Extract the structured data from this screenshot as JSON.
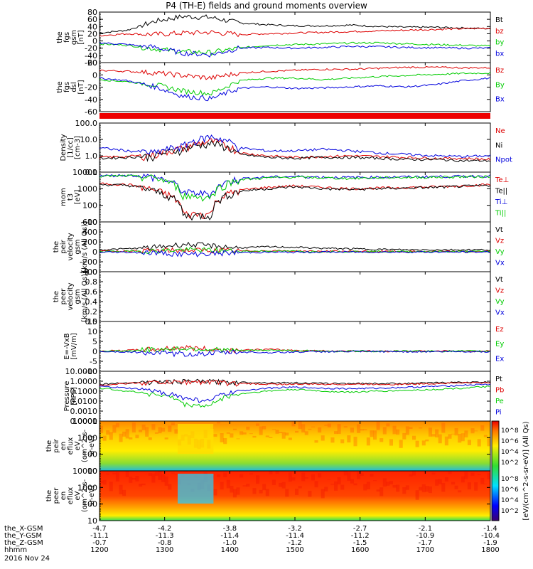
{
  "title": "P4 (TH-E) fields and ground moments overview",
  "date_label": "2016 Nov 24",
  "chart_data": [
    {
      "type": "line",
      "panel": "fgs",
      "ylabel": [
        "the",
        "fgs",
        "gsm",
        "[nT]"
      ],
      "ylim": [
        -60,
        80
      ],
      "yticks": [
        "80",
        "60",
        "40",
        "20",
        "0",
        "-20",
        "-40",
        "-60"
      ],
      "series": [
        {
          "name": "Bt",
          "color": "#000000",
          "values": [
            22,
            30,
            55,
            68,
            65,
            50,
            45,
            42,
            42,
            44,
            40,
            38,
            38,
            36,
            34
          ]
        },
        {
          "name": "bz",
          "color": "#dd0000",
          "values": [
            15,
            20,
            18,
            22,
            24,
            18,
            20,
            22,
            24,
            26,
            28,
            30,
            32,
            34,
            35
          ]
        },
        {
          "name": "by",
          "color": "#00cc00",
          "values": [
            -8,
            -12,
            -22,
            -30,
            -32,
            -20,
            -12,
            -10,
            -8,
            -6,
            -5,
            -8,
            -10,
            -12,
            -14
          ]
        },
        {
          "name": "bx",
          "color": "#0000dd",
          "values": [
            -5,
            -10,
            -18,
            -34,
            -38,
            -20,
            -18,
            -20,
            -18,
            -15,
            -16,
            -18,
            -19,
            -20,
            -20
          ]
        }
      ]
    },
    {
      "type": "line",
      "panel": "fgs_dsl",
      "ylabel": [
        "the",
        "fgs",
        "dsl",
        "[nT]"
      ],
      "ylim": [
        -70,
        25
      ],
      "yticks": [
        "20",
        "0",
        "-20",
        "-40",
        "-60"
      ],
      "series": [
        {
          "name": "Bz",
          "color": "#dd0000",
          "values": [
            10,
            8,
            5,
            0,
            -5,
            5,
            8,
            10,
            12,
            12,
            14,
            16,
            16,
            15,
            15
          ]
        },
        {
          "name": "By",
          "color": "#00cc00",
          "values": [
            -8,
            -12,
            -18,
            -30,
            -35,
            -10,
            -5,
            -5,
            -8,
            -5,
            -2,
            0,
            2,
            4,
            5
          ]
        },
        {
          "name": "Bx",
          "color": "#0000dd",
          "values": [
            -5,
            -10,
            -22,
            -40,
            -45,
            -25,
            -22,
            -25,
            -24,
            -22,
            -20,
            -22,
            -18,
            -10,
            -5
          ]
        }
      ]
    },
    {
      "type": "line",
      "panel": "density",
      "ylabel": [
        "Density",
        "[1/cc]",
        "[cm-3]"
      ],
      "ylim": [
        0.1,
        100
      ],
      "scale": "log",
      "yticks": [
        "100.0",
        "10.0",
        "1.0",
        "0.1"
      ],
      "series": [
        {
          "name": "Ne",
          "color": "#dd0000",
          "values": [
            0.8,
            0.9,
            1.2,
            3,
            8,
            1.5,
            1.0,
            0.8,
            0.9,
            1.0,
            0.9,
            0.8,
            0.7,
            0.7,
            0.6
          ]
        },
        {
          "name": "Ni",
          "color": "#000000",
          "values": [
            0.7,
            0.8,
            1.0,
            2.5,
            6,
            1.2,
            0.8,
            0.7,
            0.8,
            0.8,
            0.7,
            0.6,
            0.6,
            0.5,
            0.5
          ]
        },
        {
          "name": "Npot",
          "color": "#0000dd",
          "values": [
            3,
            2,
            1.5,
            4,
            15,
            3,
            2,
            2,
            2.5,
            2,
            1.5,
            1.2,
            1,
            0.9,
            1.0
          ]
        }
      ]
    },
    {
      "type": "line",
      "panel": "mom_t3",
      "ylabel": [
        "mom",
        "t3",
        "[eV]"
      ],
      "ylim": [
        10,
        10000
      ],
      "scale": "log",
      "yticks": [
        "10000",
        "1000",
        "100",
        "10"
      ],
      "series": [
        {
          "name": "Te⊥",
          "color": "#dd0000",
          "values": [
            2000,
            1800,
            800,
            30,
            30,
            800,
            1200,
            1500,
            1200,
            1000,
            1100,
            1200,
            1300,
            1500,
            1800
          ]
        },
        {
          "name": "Te||",
          "color": "#000000",
          "values": [
            1800,
            1600,
            700,
            25,
            25,
            700,
            1000,
            1300,
            1000,
            900,
            1000,
            1100,
            1200,
            1400,
            1600
          ]
        },
        {
          "name": "Ti⊥",
          "color": "#0000dd",
          "values": [
            6000,
            6500,
            5000,
            600,
            500,
            4000,
            5000,
            5500,
            5000,
            4800,
            5000,
            5200,
            5400,
            5600,
            6000
          ]
        },
        {
          "name": "Ti||",
          "color": "#00cc00",
          "values": [
            5500,
            6000,
            4500,
            400,
            300,
            3500,
            4500,
            5000,
            4500,
            4200,
            4600,
            4800,
            5000,
            5200,
            5500
          ]
        }
      ]
    },
    {
      "type": "line",
      "panel": "peir_velocity",
      "ylabel": [
        "the",
        "peir",
        "velocity",
        "gsm",
        "[km/s (All Qs)]"
      ],
      "ylim": [
        -400,
        600
      ],
      "yticks": [
        "600",
        "400",
        "200",
        "0",
        "-200",
        "-400"
      ],
      "series": [
        {
          "name": "Vt",
          "color": "#000000",
          "values": [
            40,
            60,
            90,
            150,
            120,
            80,
            100,
            90,
            70,
            60,
            50,
            40,
            40,
            40,
            40
          ]
        },
        {
          "name": "Vz",
          "color": "#dd0000",
          "values": [
            10,
            15,
            20,
            30,
            25,
            15,
            20,
            15,
            10,
            10,
            5,
            5,
            5,
            5,
            5
          ]
        },
        {
          "name": "Vy",
          "color": "#00cc00",
          "values": [
            5,
            10,
            15,
            40,
            30,
            10,
            15,
            10,
            5,
            5,
            5,
            5,
            5,
            5,
            5
          ]
        },
        {
          "name": "Vx",
          "color": "#0000dd",
          "values": [
            -5,
            -10,
            -20,
            -50,
            -40,
            -15,
            -10,
            -10,
            -5,
            -5,
            -5,
            -5,
            -5,
            -5,
            -5
          ]
        }
      ]
    },
    {
      "type": "line",
      "panel": "peer_velocity",
      "ylabel": [
        "the",
        "peer",
        "velocity",
        "gsm",
        "[km/s (All Qs)]"
      ],
      "ylim": [
        0,
        1
      ],
      "yticks": [
        "1.0",
        "0.8",
        "0.6",
        "0.4",
        "0.2",
        "0.0"
      ],
      "legend": [
        "Vt",
        "Vz",
        "Vy",
        "Vx"
      ],
      "legend_colors": [
        "#000000",
        "#dd0000",
        "#00cc00",
        "#0000dd"
      ]
    },
    {
      "type": "line",
      "panel": "efield",
      "ylabel": [
        "E=-VxB",
        "[mV/m]"
      ],
      "ylim": [
        -10,
        15
      ],
      "yticks": [
        "15",
        "10",
        "5",
        "0",
        "-5",
        "-10"
      ],
      "series": [
        {
          "name": "Ez",
          "color": "#dd0000",
          "values": [
            0,
            0.5,
            1,
            2,
            1,
            0.5,
            1,
            0.5,
            0.2,
            0.2,
            0.1,
            0.1,
            0.1,
            0.1,
            0.1
          ]
        },
        {
          "name": "Ey",
          "color": "#00cc00",
          "values": [
            0,
            0.3,
            0.8,
            1.5,
            1,
            0.3,
            0.6,
            0.3,
            0.1,
            0.1,
            0.1,
            0.1,
            0.1,
            0.1,
            0.1
          ]
        },
        {
          "name": "Ex",
          "color": "#0000dd",
          "values": [
            0,
            -0.3,
            -0.8,
            -1.5,
            -1,
            -0.3,
            -0.6,
            -0.3,
            -0.1,
            -0.1,
            -0.1,
            -0.1,
            -0.1,
            -0.1,
            -0.1
          ]
        }
      ]
    },
    {
      "type": "line",
      "panel": "pressure",
      "ylabel": [
        "Pressure",
        "[nPa]"
      ],
      "ylim": [
        0.0001,
        10
      ],
      "scale": "log",
      "yticks": [
        "10.0000",
        "1.0000",
        "0.1000",
        "0.0100",
        "0.0010",
        "0.0001"
      ],
      "series": [
        {
          "name": "Pt",
          "color": "#000000",
          "values": [
            0.5,
            0.7,
            0.9,
            1.0,
            1.0,
            0.8,
            0.7,
            0.7,
            0.6,
            0.6,
            0.6,
            0.6,
            0.7,
            0.8,
            0.8
          ]
        },
        {
          "name": "Pb",
          "color": "#dd0000",
          "values": [
            0.4,
            0.6,
            0.8,
            0.9,
            0.9,
            0.6,
            0.5,
            0.5,
            0.5,
            0.5,
            0.5,
            0.5,
            0.6,
            0.7,
            0.7
          ]
        },
        {
          "name": "Pe",
          "color": "#00cc00",
          "values": [
            0.2,
            0.1,
            0.05,
            0.005,
            0.003,
            0.05,
            0.1,
            0.15,
            0.1,
            0.08,
            0.1,
            0.12,
            0.15,
            0.2,
            0.3
          ]
        },
        {
          "name": "Pi",
          "color": "#0000dd",
          "values": [
            0.3,
            0.2,
            0.1,
            0.02,
            0.01,
            0.1,
            0.2,
            0.25,
            0.2,
            0.18,
            0.2,
            0.25,
            0.3,
            0.4,
            0.5
          ]
        }
      ]
    },
    {
      "type": "heatmap",
      "panel": "peir_eflux",
      "ylabel": [
        "the",
        "peir",
        "en",
        "eflux",
        "eV",
        "(cm^2-s-",
        "sr-eV)"
      ],
      "ylim": [
        10,
        10000
      ],
      "scale": "log",
      "yticks": [
        "10000",
        "1000",
        "100",
        "10"
      ]
    },
    {
      "type": "heatmap",
      "panel": "peer_eflux",
      "ylabel": [
        "the",
        "peer",
        "en",
        "eflux",
        "eV",
        "(cm^2-s-",
        "sr-eV)"
      ],
      "ylim": [
        10,
        10000
      ],
      "scale": "log",
      "yticks": [
        "10000",
        "1000",
        "100",
        "10"
      ]
    }
  ],
  "colorbar": {
    "label": "[eV/(cm^2-s-sr-eV)] (All Qs)",
    "ticks_top": [
      "10^8",
      "10^6",
      "10^4",
      "10^2"
    ],
    "ticks_bottom": [
      "10^8",
      "10^6",
      "10^4",
      "10^2"
    ]
  },
  "xaxis": {
    "rows": [
      {
        "label": "the_X-GSM",
        "values": [
          "-4.7",
          "-4.2",
          "-3.8",
          "-3.2",
          "-2.7",
          "-2.1",
          "-1.4"
        ]
      },
      {
        "label": "the_Y-GSM",
        "values": [
          "-11.1",
          "-11.3",
          "-11.4",
          "-11.4",
          "-11.2",
          "-10.9",
          "-10.4"
        ]
      },
      {
        "label": "the_Z-GSM",
        "values": [
          "-0.7",
          "-0.8",
          "-1.0",
          "-1.2",
          "-1.5",
          "-1.7",
          "-1.9"
        ]
      },
      {
        "label": "hhmm",
        "values": [
          "1200",
          "1300",
          "1400",
          "1500",
          "1600",
          "1700",
          "1800"
        ]
      }
    ]
  }
}
